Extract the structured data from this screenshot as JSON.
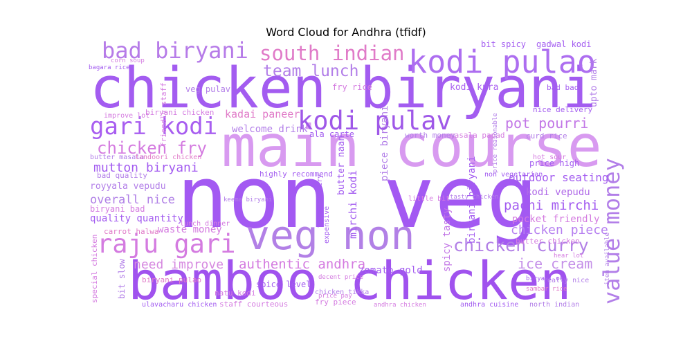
{
  "chart_data": {
    "type": "wordcloud",
    "title": "Word Cloud for Andhra (tfidf)",
    "categories": [
      "chicken biryani",
      "non veg",
      "bamboo chicken",
      "main course",
      "veg non",
      "kodi pulao",
      "south indian",
      "bad biryani",
      "gari kodi",
      "kodi pulav",
      "pot pourri",
      "team lunch",
      "chicken fry",
      "mutton biryani",
      "raju gari",
      "authentic andhra",
      "chicken curry",
      "value money",
      "pachi mirchi",
      "chicken piece",
      "ice cream",
      "need improve",
      "overall nice",
      "quality quantity",
      "kadai paneer",
      "welcome drink",
      "outdoor seating",
      "kodi vepudu",
      "royyala vepudu",
      "waste money",
      "pocket friendly",
      "zomato gold",
      "kodi kura",
      "veg pulav",
      "ala carte",
      "bit spicy",
      "gadwal kodi",
      "fry rice",
      "staff courteous",
      "fry piece",
      "andhra chicken",
      "andhra cuisine",
      "north indian",
      "ulavacharu chicken",
      "biryani bad",
      "carrot halwa",
      "price high",
      "bad quality",
      "butter chicken",
      "nice delivery",
      "curd rice",
      "hot sour",
      "bad bad",
      "upto mark",
      "spicy tasty",
      "butter naan",
      "mirchi kodi",
      "piece biryani",
      "biryani biryani",
      "lunch dinner",
      "spice level",
      "natu kodi",
      "chicken tikka",
      "friendly staff",
      "biryani chicken",
      "butter masala",
      "tandoori chicken",
      "masala papad",
      "worth money",
      "special chicken",
      "bit slow",
      "biryani pulao",
      "improve lot",
      "highly recommend",
      "non vegetarian",
      "really nice",
      "decent price",
      "price pay",
      "bagara rice",
      "corn soup",
      "sambar rice",
      "biryani ok",
      "item available",
      "little bit",
      "tasty chicken",
      "expensive",
      "fast delivery",
      "keema biryani",
      "hear lot",
      "price reasonable"
    ],
    "values": [
      81,
      124,
      76,
      83,
      58,
      45,
      29,
      32,
      34,
      37,
      20,
      23,
      24,
      18,
      37,
      19,
      25,
      32,
      19,
      18,
      20,
      18,
      17,
      14,
      15,
      14,
      16,
      14,
      13,
      14,
      14,
      14,
      13,
      12,
      12,
      12,
      12,
      12,
      11,
      11,
      9,
      10,
      10,
      10,
      12,
      11,
      12,
      11,
      11,
      11,
      11,
      10,
      11,
      13,
      14,
      13,
      15,
      14,
      14,
      10,
      12,
      11,
      10,
      11,
      11,
      10,
      10,
      11,
      11,
      11,
      12,
      11,
      10,
      11,
      10,
      10,
      9,
      9,
      9,
      9,
      9,
      9,
      9,
      10,
      9,
      10,
      10,
      9,
      9,
      9
    ],
    "colors": [
      "#a35cf0",
      "#a359f2",
      "#a052ee",
      "#d89af0",
      "#b280e6",
      "#ad6ef0",
      "#e07bc8",
      "#b67be8",
      "#a85ef0",
      "#9f58e8",
      "#c277e6",
      "#b27ee8",
      "#d47be0",
      "#a35cf0",
      "#d47be0",
      "#d47be0",
      "#b280e6",
      "#b27ee8",
      "#a35cf0",
      "#b680f0",
      "#c48fe8",
      "#d689e0",
      "#b080e6",
      "#a35cf0",
      "#e07bc8",
      "#b27ee8",
      "#a35cf0",
      "#b06ae8",
      "#b27ee8",
      "#d47be0",
      "#d47be0",
      "#a35cf0",
      "#a85ef0",
      "#b27ee8",
      "#a35cf0",
      "#a35cf0",
      "#a35cf0",
      "#d47be0",
      "#d47be0",
      "#d47be0",
      "#d47be0",
      "#a35cf0",
      "#b27ee8",
      "#a35cf0",
      "#d47be0",
      "#e07bc8",
      "#a35cf0",
      "#b27ee8",
      "#d47be0",
      "#a35cf0",
      "#b27ee8",
      "#d47be0",
      "#a35cf0",
      "#b27ee8",
      "#c277e6",
      "#a35cf0",
      "#a35cf0",
      "#b27ee8",
      "#a35cf0",
      "#d47be0",
      "#a35cf0",
      "#d47be0",
      "#b27ee8",
      "#d47be0",
      "#d47be0",
      "#b27ee8",
      "#e07bc8",
      "#d47be0",
      "#b27ee8",
      "#d47be0",
      "#b27ee8",
      "#e07bc8",
      "#d47be0",
      "#a35cf0",
      "#a35cf0",
      "#b27ee8",
      "#d47be0",
      "#d47be0",
      "#a35cf0",
      "#d47be0",
      "#e07bc8",
      "#a35cf0",
      "#b27ee8",
      "#d47be0",
      "#b27ee8",
      "#a35cf0",
      "#a35cf0",
      "#b27ee8",
      "#d47be0",
      "#b27ee8"
    ]
  }
}
